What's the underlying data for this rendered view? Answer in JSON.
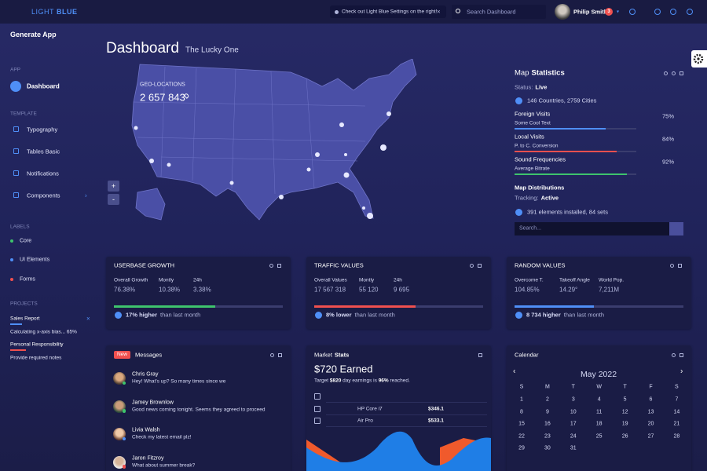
{
  "header": {
    "logo_light": "LIGHT",
    "logo_bold": "BLUE",
    "notice": "Check out Light Blue Settings on the right!",
    "search_placeholder": "Search Dashboard",
    "user_name": "Philip Smith",
    "notification_count": 3
  },
  "sidebar": {
    "title": "Generate App",
    "app_label": "APP",
    "active_item": "Dashboard",
    "template_label": "TEMPLATE",
    "template_items": [
      "Typography",
      "Tables Basic",
      "Notifications",
      "Components"
    ],
    "labels_label": "LABELS",
    "labels": [
      {
        "name": "Core",
        "color": "#3ec46d"
      },
      {
        "name": "UI Elements",
        "color": "#4f8ff7"
      },
      {
        "name": "Forms",
        "color": "#f0504f"
      }
    ],
    "projects_label": "PROJECTS",
    "projects": [
      {
        "title": "Sales Report",
        "note": "Calculating x-axis bias... 65%",
        "progress": 15,
        "color": "#4f8ff7"
      },
      {
        "title": "Personal Responsibility",
        "note": "Provide required notes",
        "progress": 20,
        "color": "#f0504f"
      }
    ]
  },
  "page": {
    "title": "Dashboard",
    "subtitle": "The Lucky One"
  },
  "map": {
    "label": "GEO-LOCATIONS",
    "total": "2 657 843"
  },
  "map_stats": {
    "title_prefix": "Map",
    "title_bold": "Statistics",
    "status_label": "Status:",
    "status": "Live",
    "coverage": "146 Countries, 2759 Cities",
    "stats": [
      {
        "name": "Foreign Visits",
        "note": "Some Cool Text",
        "percent": {
          "value": 75,
          "label": "75%"
        },
        "color": "#4f8ff7"
      },
      {
        "name": "Local Visits",
        "note": "P. to C. Conversion",
        "percent": {
          "value": 84,
          "label": "84%"
        },
        "color": "#f0504f"
      },
      {
        "name": "Sound Frequencies",
        "note": "Average Bitrate",
        "percent": {
          "value": 92,
          "label": "92%"
        },
        "color": "#3ec46d"
      }
    ],
    "distributions_title": "Map Distributions",
    "tracking_label": "Tracking:",
    "tracking": "Active",
    "elements": "391 elements installed, 84 sets",
    "search_placeholder": "Search..."
  },
  "widgets": [
    {
      "title": "USERBASE GROWTH",
      "stats": [
        {
          "label": "Overall Growth",
          "value": "76.38%"
        },
        {
          "label": "Montly",
          "value": "10.38%"
        },
        {
          "label": "24h",
          "value": "3.38%"
        }
      ],
      "progress": 60,
      "color": "#3ec46d",
      "delta": "17% higher",
      "delta_note": "than last month"
    },
    {
      "title": "TRAFFIC VALUES",
      "stats": [
        {
          "label": "Overall Values",
          "value": "17 567 318"
        },
        {
          "label": "Montly",
          "value": "55 120"
        },
        {
          "label": "24h",
          "value": "9 695"
        }
      ],
      "progress": 60,
      "color": "#f0504f",
      "delta": "8% lower",
      "delta_note": "than last month"
    },
    {
      "title": "RANDOM VALUES",
      "stats": [
        {
          "label": "Overcome T.",
          "value": "104.85%"
        },
        {
          "label": "Takeoff Angle",
          "value": "14.29°"
        },
        {
          "label": "World Pop.",
          "value": "7,211M"
        }
      ],
      "progress": 47,
      "color": "#4f8ff7",
      "delta": "8 734 higher",
      "delta_note": "than last month"
    }
  ],
  "messages": {
    "badge": "New",
    "title": "Messages",
    "items": [
      {
        "name": "Chris Gray",
        "text": "Hey! What's up? So many times since we"
      },
      {
        "name": "Jamey Brownlow",
        "text": "Good news coming tonight. Seems they agreed to proceed"
      },
      {
        "name": "Livia Walsh",
        "text": "Check my latest email plz!"
      },
      {
        "name": "Jaron Fitzroy",
        "text": "What about summer break?"
      }
    ]
  },
  "market": {
    "title_prefix": "Market",
    "title_bold": "Stats",
    "earned": "$720 Earned",
    "target_parts": [
      "Target ",
      "$820",
      " day earnings is ",
      "96%",
      " reached."
    ],
    "rows": [
      {
        "name": "HP Core i7",
        "price": "$346.1"
      },
      {
        "name": "Air Pro",
        "price": "$533.1"
      }
    ]
  },
  "calendar": {
    "title": "Calendar",
    "month": "May 2022",
    "weekdays": [
      "S",
      "M",
      "T",
      "W",
      "T",
      "F",
      "S"
    ],
    "weeks": [
      [
        1,
        2,
        3,
        4,
        5,
        6,
        7
      ],
      [
        8,
        9,
        10,
        11,
        12,
        13,
        14
      ],
      [
        15,
        16,
        17,
        18,
        19,
        20,
        21
      ],
      [
        22,
        23,
        24,
        25,
        26,
        27,
        28
      ],
      [
        29,
        30,
        31
      ]
    ]
  }
}
